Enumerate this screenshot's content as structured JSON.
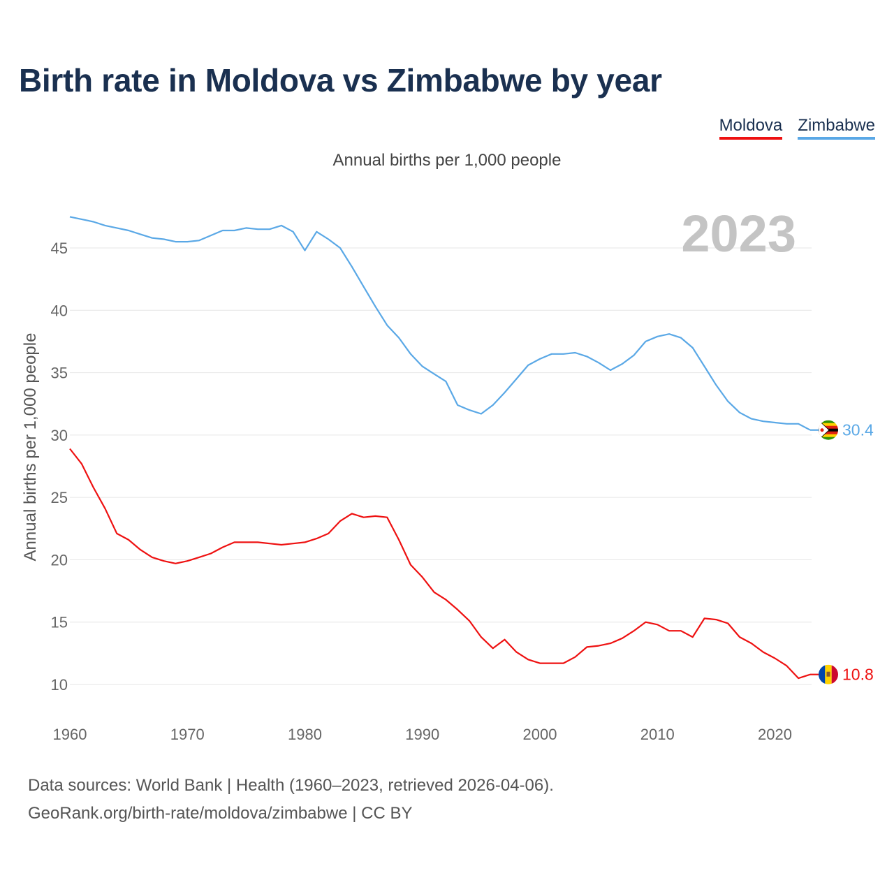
{
  "title": "Birth rate in Moldova vs Zimbabwe by year",
  "legend": [
    {
      "label": "Moldova",
      "color": "#ee1111"
    },
    {
      "label": "Zimbabwe",
      "color": "#5aa8e6"
    }
  ],
  "subtitle": "Annual births per 1,000 people",
  "year_watermark": "2023",
  "footer": {
    "line1": "Data sources: World Bank | Health (1960–2023, retrieved 2026-04-06).",
    "line2": "GeoRank.org/birth-rate/moldova/zimbabwe | CC BY"
  },
  "chart_data": {
    "type": "line",
    "title": "Birth rate in Moldova vs Zimbabwe by year",
    "xlabel": "",
    "ylabel": "Annual births per 1,000 people",
    "xlim": [
      1960,
      2023
    ],
    "ylim": [
      8,
      48
    ],
    "xticks": [
      1960,
      1970,
      1980,
      1990,
      2000,
      2010,
      2020
    ],
    "yticks": [
      10,
      15,
      20,
      25,
      30,
      35,
      40,
      45
    ],
    "grid": true,
    "legend_position": "top-right",
    "x": [
      1960,
      1961,
      1962,
      1963,
      1964,
      1965,
      1966,
      1967,
      1968,
      1969,
      1970,
      1971,
      1972,
      1973,
      1974,
      1975,
      1976,
      1977,
      1978,
      1979,
      1980,
      1981,
      1982,
      1983,
      1984,
      1985,
      1986,
      1987,
      1988,
      1989,
      1990,
      1991,
      1992,
      1993,
      1994,
      1995,
      1996,
      1997,
      1998,
      1999,
      2000,
      2001,
      2002,
      2003,
      2004,
      2005,
      2006,
      2007,
      2008,
      2009,
      2010,
      2011,
      2012,
      2013,
      2014,
      2015,
      2016,
      2017,
      2018,
      2019,
      2020,
      2021,
      2022,
      2023
    ],
    "series": [
      {
        "name": "Zimbabwe",
        "color": "#5aa8e6",
        "end_label": "30.4",
        "values": [
          47.5,
          47.3,
          47.1,
          46.8,
          46.6,
          46.4,
          46.1,
          45.8,
          45.7,
          45.5,
          45.5,
          45.6,
          46.0,
          46.4,
          46.4,
          46.6,
          46.5,
          46.5,
          46.8,
          46.3,
          44.8,
          46.3,
          45.7,
          45.0,
          43.5,
          41.9,
          40.3,
          38.8,
          37.8,
          36.5,
          35.5,
          34.9,
          34.3,
          32.4,
          32.0,
          31.7,
          32.4,
          33.4,
          34.5,
          35.6,
          36.1,
          36.5,
          36.5,
          36.6,
          36.3,
          35.8,
          35.2,
          35.7,
          36.4,
          37.5,
          37.9,
          38.1,
          37.8,
          37.0,
          35.5,
          34.0,
          32.7,
          31.8,
          31.3,
          31.1,
          31.0,
          30.9,
          30.9,
          30.4
        ]
      },
      {
        "name": "Moldova",
        "color": "#ee1111",
        "end_label": "10.8",
        "values": [
          28.9,
          27.7,
          25.8,
          24.1,
          22.1,
          21.6,
          20.8,
          20.2,
          19.9,
          19.7,
          19.9,
          20.2,
          20.5,
          21.0,
          21.4,
          21.4,
          21.4,
          21.3,
          21.2,
          21.3,
          21.4,
          21.7,
          22.1,
          23.1,
          23.7,
          23.4,
          23.5,
          23.4,
          21.6,
          19.6,
          18.6,
          17.4,
          16.8,
          16.0,
          15.1,
          13.8,
          12.9,
          13.6,
          12.6,
          12.0,
          11.7,
          11.7,
          11.7,
          12.2,
          13.0,
          13.1,
          13.3,
          13.7,
          14.3,
          15.0,
          14.8,
          14.3,
          14.3,
          13.8,
          15.3,
          15.2,
          14.9,
          13.8,
          13.3,
          12.6,
          12.1,
          11.5,
          10.5,
          10.8
        ]
      }
    ]
  }
}
